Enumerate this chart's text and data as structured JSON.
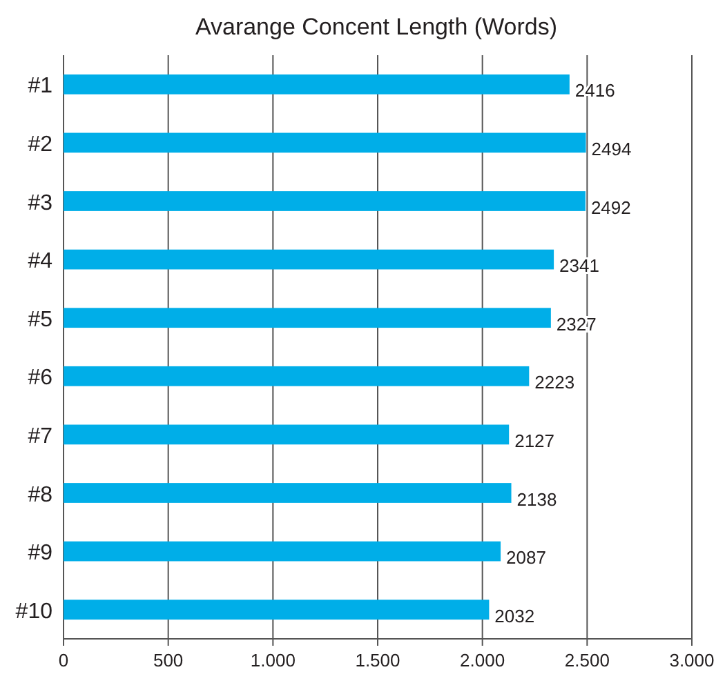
{
  "chart_data": {
    "type": "bar",
    "orientation": "horizontal",
    "title": "Avarange Concent Length (Words)",
    "categories": [
      "#1",
      "#2",
      "#3",
      "#4",
      "#5",
      "#6",
      "#7",
      "#8",
      "#9",
      "#10"
    ],
    "values": [
      2416,
      2494,
      2492,
      2341,
      2327,
      2223,
      2127,
      2138,
      2087,
      2032
    ],
    "color": "#00aee8",
    "data_labels": true,
    "grid": "x",
    "xlim": [
      0,
      3000
    ],
    "xticks": [
      0,
      500,
      {
        "value": 1000,
        "label": "1.000"
      },
      {
        "value": 1500,
        "label": "1.500"
      },
      {
        "value": 2000,
        "label": "2.000"
      },
      {
        "value": 2500,
        "label": "2.500"
      },
      {
        "value": 3000,
        "label": "3.000"
      }
    ]
  }
}
